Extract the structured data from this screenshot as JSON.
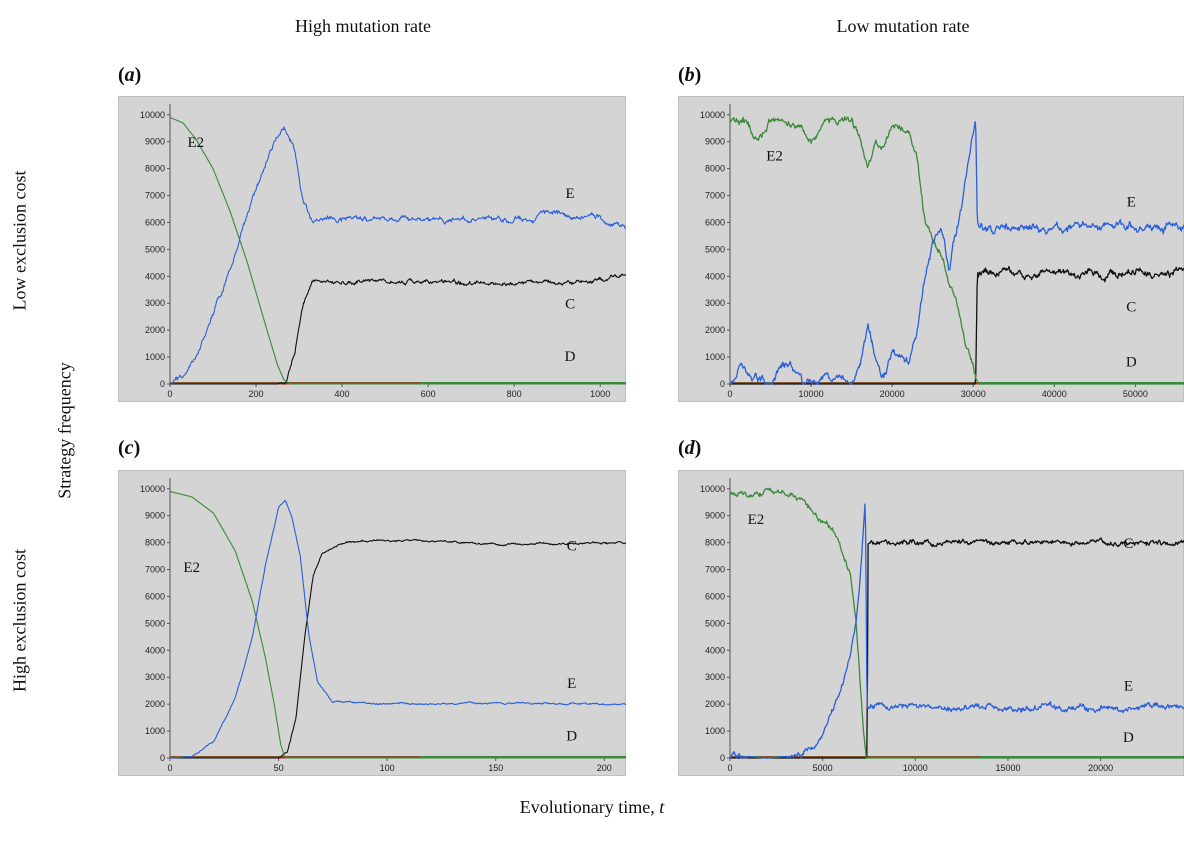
{
  "column_titles": [
    "High mutation rate",
    "Low mutation rate"
  ],
  "row_titles": [
    "Low exclusion cost",
    "High exclusion cost"
  ],
  "shared_ylabel": "Strategy frequency",
  "shared_xlabel_text": "Evolutionary time, ",
  "shared_xlabel_var": "t",
  "colors": {
    "E": "#2b5fd9",
    "E2": "#3a8a3a",
    "C": "#111111",
    "D": "#cc2222",
    "D_baseline": "#3a8a3a",
    "panel_bg": "#d4d4d4"
  },
  "chart_data": [
    {
      "id": "a",
      "label_open": "(",
      "label_letter": "a",
      "label_close": ")",
      "type": "line",
      "xlim": [
        0,
        1060
      ],
      "ylim": [
        0,
        10400
      ],
      "xticks": [
        0,
        200,
        400,
        600,
        800,
        1000
      ],
      "yticks": [
        0,
        1000,
        2000,
        3000,
        4000,
        5000,
        6000,
        7000,
        8000,
        9000,
        10000
      ],
      "series": [
        {
          "name": "E2",
          "noise": 0,
          "points": [
            [
              0,
              9900
            ],
            [
              30,
              9700
            ],
            [
              60,
              9100
            ],
            [
              100,
              8000
            ],
            [
              140,
              6400
            ],
            [
              180,
              4500
            ],
            [
              220,
              2300
            ],
            [
              250,
              700
            ],
            [
              265,
              150
            ],
            [
              280,
              0
            ],
            [
              1060,
              0
            ]
          ]
        },
        {
          "name": "E",
          "noise": 120,
          "points": [
            [
              0,
              0
            ],
            [
              30,
              300
            ],
            [
              60,
              1000
            ],
            [
              100,
              2500
            ],
            [
              150,
              4800
            ],
            [
              200,
              7300
            ],
            [
              240,
              8900
            ],
            [
              265,
              9550
            ],
            [
              290,
              8600
            ],
            [
              310,
              6600
            ],
            [
              330,
              6100
            ],
            [
              600,
              6100
            ],
            [
              800,
              6100
            ],
            [
              880,
              6300
            ],
            [
              1000,
              6200
            ],
            [
              1060,
              5800
            ]
          ]
        },
        {
          "name": "C",
          "noise": 90,
          "points": [
            [
              0,
              0
            ],
            [
              250,
              0
            ],
            [
              270,
              100
            ],
            [
              290,
              1200
            ],
            [
              310,
              3000
            ],
            [
              330,
              3800
            ],
            [
              400,
              3800
            ],
            [
              600,
              3800
            ],
            [
              800,
              3700
            ],
            [
              1000,
              3800
            ],
            [
              1060,
              4100
            ]
          ]
        },
        {
          "name": "D",
          "noise": 0,
          "points": [
            [
              0,
              60
            ],
            [
              1060,
              60
            ]
          ]
        }
      ],
      "annotations": [
        {
          "text": "E2",
          "x": 60,
          "y": 8800
        },
        {
          "text": "E",
          "x": 930,
          "y": 6900
        },
        {
          "text": "C",
          "x": 930,
          "y": 2800
        },
        {
          "text": "D",
          "x": 930,
          "y": 850
        }
      ]
    },
    {
      "id": "b",
      "label_open": "(",
      "label_letter": "b",
      "label_close": ")",
      "type": "line",
      "xlim": [
        0,
        56000
      ],
      "ylim": [
        0,
        10400
      ],
      "xticks": [
        0,
        10000,
        20000,
        30000,
        40000,
        50000
      ],
      "yticks": [
        0,
        1000,
        2000,
        3000,
        4000,
        5000,
        6000,
        7000,
        8000,
        9000,
        10000
      ],
      "series": [
        {
          "name": "E2",
          "noise": 160,
          "points": [
            [
              0,
              9800
            ],
            [
              2000,
              9700
            ],
            [
              3500,
              9000
            ],
            [
              5000,
              9800
            ],
            [
              9000,
              9500
            ],
            [
              10000,
              9000
            ],
            [
              12000,
              9800
            ],
            [
              15000,
              9800
            ],
            [
              16000,
              9200
            ],
            [
              17000,
              8000
            ],
            [
              18000,
              9000
            ],
            [
              19000,
              8700
            ],
            [
              20000,
              9600
            ],
            [
              22000,
              9400
            ],
            [
              23000,
              8600
            ],
            [
              24000,
              6200
            ],
            [
              25000,
              5200
            ],
            [
              26000,
              4800
            ],
            [
              27000,
              3800
            ],
            [
              28000,
              3000
            ],
            [
              29000,
              1500
            ],
            [
              30300,
              200
            ],
            [
              30600,
              0
            ],
            [
              56000,
              0
            ]
          ]
        },
        {
          "name": "E",
          "noise": 180,
          "points": [
            [
              0,
              0
            ],
            [
              1500,
              800
            ],
            [
              3000,
              300
            ],
            [
              5000,
              0
            ],
            [
              6500,
              800
            ],
            [
              7500,
              600
            ],
            [
              9000,
              0
            ],
            [
              12000,
              300
            ],
            [
              15000,
              0
            ],
            [
              16000,
              800
            ],
            [
              17000,
              2200
            ],
            [
              18000,
              900
            ],
            [
              19000,
              400
            ],
            [
              20000,
              1300
            ],
            [
              22000,
              800
            ],
            [
              23000,
              1800
            ],
            [
              24000,
              3800
            ],
            [
              25000,
              5200
            ],
            [
              26000,
              5800
            ],
            [
              27000,
              4200
            ],
            [
              28000,
              5800
            ],
            [
              29000,
              7500
            ],
            [
              30300,
              9800
            ],
            [
              30500,
              5800
            ],
            [
              56000,
              5800
            ]
          ]
        },
        {
          "name": "C",
          "noise": 160,
          "points": [
            [
              0,
              0
            ],
            [
              30300,
              0
            ],
            [
              30500,
              4100
            ],
            [
              56000,
              4100
            ]
          ]
        },
        {
          "name": "D",
          "noise": 0,
          "points": [
            [
              0,
              60
            ],
            [
              56000,
              60
            ]
          ]
        }
      ],
      "annotations": [
        {
          "text": "E2",
          "x": 5500,
          "y": 8300
        },
        {
          "text": "E",
          "x": 49500,
          "y": 6600
        },
        {
          "text": "C",
          "x": 49500,
          "y": 2700
        },
        {
          "text": "D",
          "x": 49500,
          "y": 650
        }
      ]
    },
    {
      "id": "c",
      "label_open": "(",
      "label_letter": "c",
      "label_close": ")",
      "type": "line",
      "xlim": [
        0,
        210
      ],
      "ylim": [
        0,
        10400
      ],
      "xticks": [
        0,
        50,
        100,
        150,
        200
      ],
      "yticks": [
        0,
        1000,
        2000,
        3000,
        4000,
        5000,
        6000,
        7000,
        8000,
        9000,
        10000
      ],
      "series": [
        {
          "name": "E2",
          "noise": 0,
          "points": [
            [
              0,
              9900
            ],
            [
              10,
              9700
            ],
            [
              20,
              9100
            ],
            [
              30,
              7700
            ],
            [
              38,
              5800
            ],
            [
              44,
              3700
            ],
            [
              48,
              2000
            ],
            [
              51,
              500
            ],
            [
              53,
              0
            ],
            [
              210,
              0
            ]
          ]
        },
        {
          "name": "E",
          "noise": 35,
          "points": [
            [
              0,
              0
            ],
            [
              10,
              50
            ],
            [
              20,
              600
            ],
            [
              30,
              2200
            ],
            [
              38,
              4500
            ],
            [
              44,
              7200
            ],
            [
              50,
              9300
            ],
            [
              53,
              9600
            ],
            [
              56,
              9000
            ],
            [
              60,
              7500
            ],
            [
              64,
              4500
            ],
            [
              68,
              2800
            ],
            [
              75,
              2100
            ],
            [
              100,
              2000
            ],
            [
              150,
              2050
            ],
            [
              210,
              2000
            ]
          ]
        },
        {
          "name": "C",
          "noise": 40,
          "points": [
            [
              0,
              0
            ],
            [
              50,
              0
            ],
            [
              54,
              200
            ],
            [
              58,
              1500
            ],
            [
              62,
              4500
            ],
            [
              66,
              6800
            ],
            [
              70,
              7600
            ],
            [
              80,
              8000
            ],
            [
              100,
              8100
            ],
            [
              150,
              7950
            ],
            [
              210,
              8000
            ]
          ]
        },
        {
          "name": "D",
          "noise": 0,
          "points": [
            [
              0,
              60
            ],
            [
              210,
              60
            ]
          ]
        }
      ],
      "annotations": [
        {
          "text": "E2",
          "x": 10,
          "y": 6900
        },
        {
          "text": "C",
          "x": 185,
          "y": 7700
        },
        {
          "text": "E",
          "x": 185,
          "y": 2600
        },
        {
          "text": "D",
          "x": 185,
          "y": 650
        }
      ]
    },
    {
      "id": "d",
      "label_open": "(",
      "label_letter": "d",
      "label_close": ")",
      "type": "line",
      "xlim": [
        0,
        24500
      ],
      "ylim": [
        0,
        10400
      ],
      "xticks": [
        0,
        5000,
        10000,
        15000,
        20000
      ],
      "yticks": [
        0,
        1000,
        2000,
        3000,
        4000,
        5000,
        6000,
        7000,
        8000,
        9000,
        10000
      ],
      "series": [
        {
          "name": "E2",
          "noise": 120,
          "points": [
            [
              0,
              9850
            ],
            [
              3000,
              9800
            ],
            [
              4000,
              9600
            ],
            [
              4500,
              9000
            ],
            [
              5500,
              8600
            ],
            [
              6000,
              7800
            ],
            [
              6500,
              6800
            ],
            [
              6800,
              5000
            ],
            [
              7000,
              3000
            ],
            [
              7200,
              1000
            ],
            [
              7350,
              0
            ],
            [
              24500,
              0
            ]
          ]
        },
        {
          "name": "E",
          "noise": 130,
          "points": [
            [
              0,
              100
            ],
            [
              2000,
              0
            ],
            [
              4000,
              100
            ],
            [
              5000,
              800
            ],
            [
              5500,
              1800
            ],
            [
              6000,
              2600
            ],
            [
              6500,
              3800
            ],
            [
              6800,
              5200
            ],
            [
              7000,
              6500
            ],
            [
              7300,
              9700
            ],
            [
              7400,
              1900
            ],
            [
              24500,
              1900
            ]
          ]
        },
        {
          "name": "C",
          "noise": 110,
          "points": [
            [
              0,
              0
            ],
            [
              7400,
              0
            ],
            [
              7450,
              8000
            ],
            [
              24500,
              8000
            ]
          ]
        },
        {
          "name": "D",
          "noise": 0,
          "points": [
            [
              0,
              60
            ],
            [
              24500,
              60
            ]
          ]
        }
      ],
      "annotations": [
        {
          "text": "E2",
          "x": 1400,
          "y": 8700
        },
        {
          "text": "C",
          "x": 21500,
          "y": 7800
        },
        {
          "text": "E",
          "x": 21500,
          "y": 2500
        },
        {
          "text": "D",
          "x": 21500,
          "y": 600
        }
      ]
    }
  ]
}
